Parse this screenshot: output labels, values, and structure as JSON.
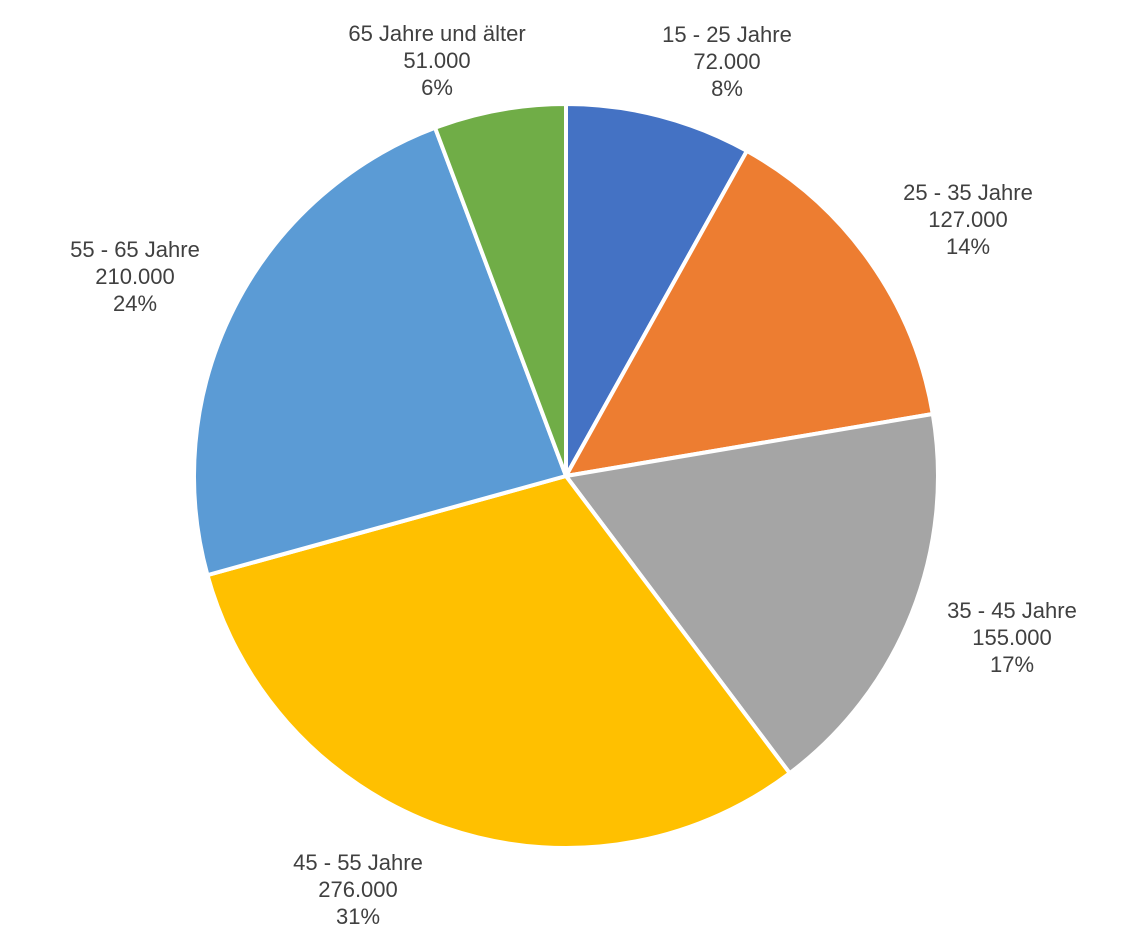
{
  "chart_data": {
    "type": "pie",
    "title": "",
    "slices": [
      {
        "label": "15 - 25 Jahre",
        "value": 72000,
        "value_label": "72.000",
        "percent": 8,
        "percent_label": "8%",
        "color": "#4472C4"
      },
      {
        "label": "25 - 35 Jahre",
        "value": 127000,
        "value_label": "127.000",
        "percent": 14,
        "percent_label": "14%",
        "color": "#ED7D31"
      },
      {
        "label": "35 - 45 Jahre",
        "value": 155000,
        "value_label": "155.000",
        "percent": 17,
        "percent_label": "17%",
        "color": "#A5A5A5"
      },
      {
        "label": "45 - 55 Jahre",
        "value": 276000,
        "value_label": "276.000",
        "percent": 31,
        "percent_label": "31%",
        "color": "#FFC000"
      },
      {
        "label": "55 - 65 Jahre",
        "value": 210000,
        "value_label": "210.000",
        "percent": 24,
        "percent_label": "24%",
        "color": "#5B9BD5"
      },
      {
        "label": "65 Jahre und älter",
        "value": 51000,
        "value_label": "51.000",
        "percent": 6,
        "percent_label": "6%",
        "color": "#70AD47"
      }
    ],
    "start_angle": "12 o'clock",
    "direction": "clockwise",
    "data_labels": "outside",
    "legend": "none"
  }
}
